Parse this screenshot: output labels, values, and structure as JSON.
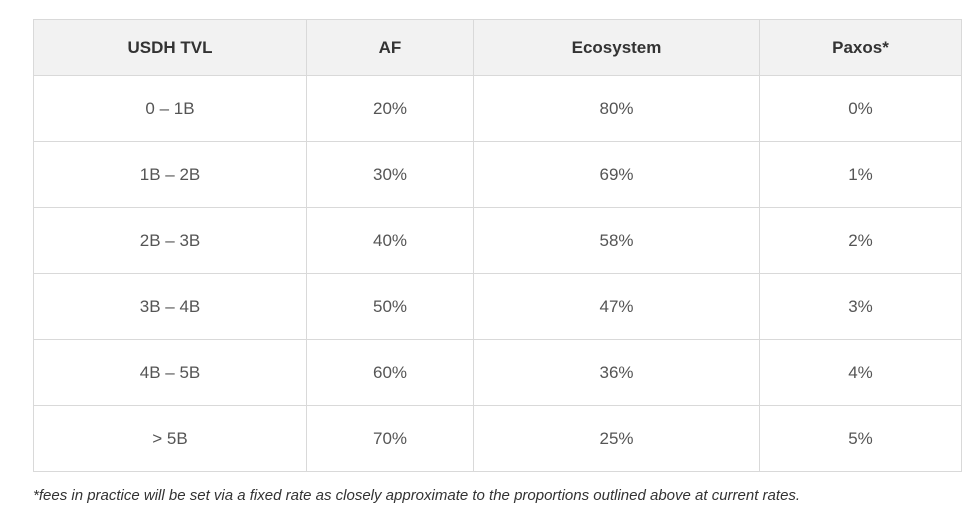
{
  "table": {
    "headers": [
      "USDH TVL",
      "AF",
      "Ecosystem",
      "Paxos*"
    ],
    "rows": [
      [
        "0 – 1B",
        "20%",
        "80%",
        "0%"
      ],
      [
        "1B – 2B",
        "30%",
        "69%",
        "1%"
      ],
      [
        "2B – 3B",
        "40%",
        "58%",
        "2%"
      ],
      [
        "3B – 4B",
        "50%",
        "47%",
        "3%"
      ],
      [
        "4B – 5B",
        "60%",
        "36%",
        "4%"
      ],
      [
        "> 5B",
        "70%",
        "25%",
        "5%"
      ]
    ]
  },
  "footnote": "*fees in practice will be set via a fixed rate as closely approximate to the proportions outlined above at current rates.",
  "colors": {
    "header_background": "#f2f2f2",
    "border": "#d9d9d9",
    "text": "#555555"
  }
}
